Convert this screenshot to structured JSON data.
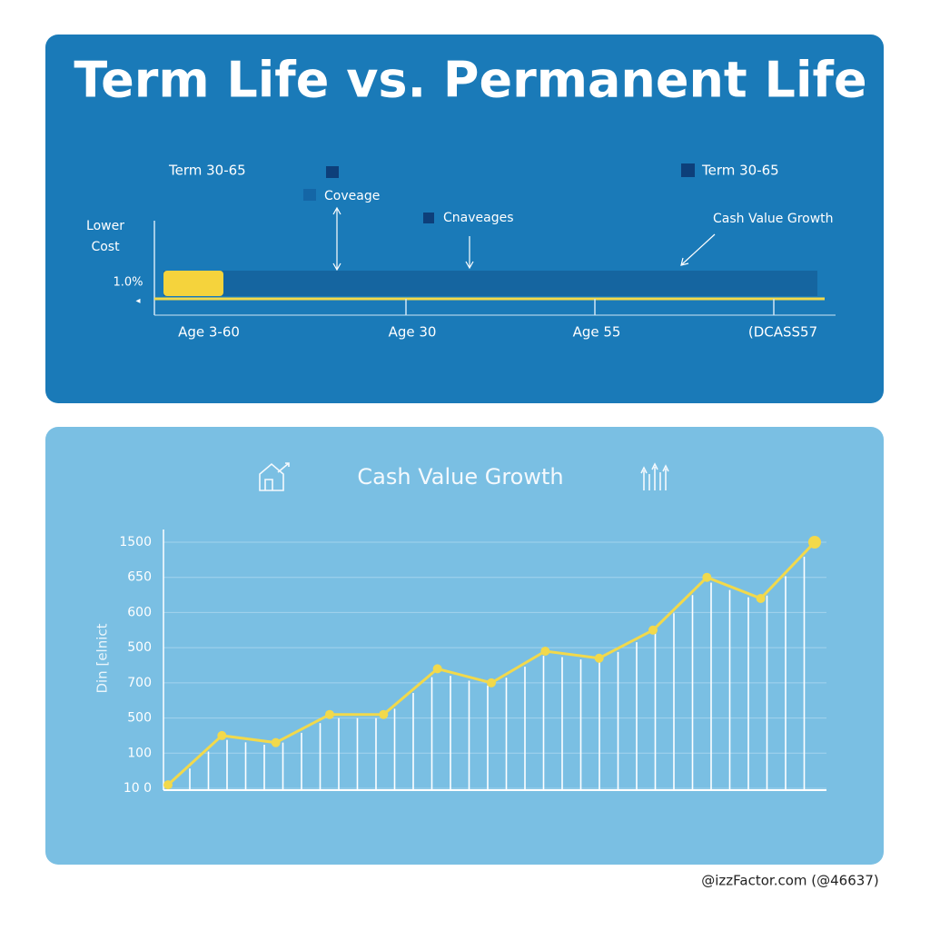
{
  "header": {
    "title": "Term Life vs. Permanent Life"
  },
  "top_panel": {
    "left_legend_label": "Term 30-65",
    "coverage_label": "Coveage",
    "coverages_label": "Cnaveages",
    "right_legend_label": "Term 30-65",
    "cash_value_label": "Cash Value Growth",
    "lower_cost_label": "Lower Cost",
    "rate_label": "1.0%",
    "age_labels": [
      "Age 3-60",
      "Age 30",
      "Age 55",
      "(DCASS57"
    ]
  },
  "chart_data": {
    "type": "line",
    "title": "Cash Value Growth",
    "y_label": "Din [elnict",
    "y_categories": [
      "10 0",
      "100",
      "500",
      "700",
      "500",
      "600",
      "650",
      "1500"
    ],
    "categories": [
      null,
      null,
      null,
      null,
      null,
      null,
      null,
      null,
      null,
      null,
      null,
      null,
      null
    ],
    "values": [
      0.1,
      1.5,
      1.3,
      2.1,
      2.1,
      3.4,
      3.0,
      3.9,
      3.7,
      4.5,
      6.0,
      5.4,
      7.0
    ],
    "color": "#f2d94b",
    "grid": true
  },
  "footer": {
    "credit": "@izzFactor.com (@46637)"
  }
}
